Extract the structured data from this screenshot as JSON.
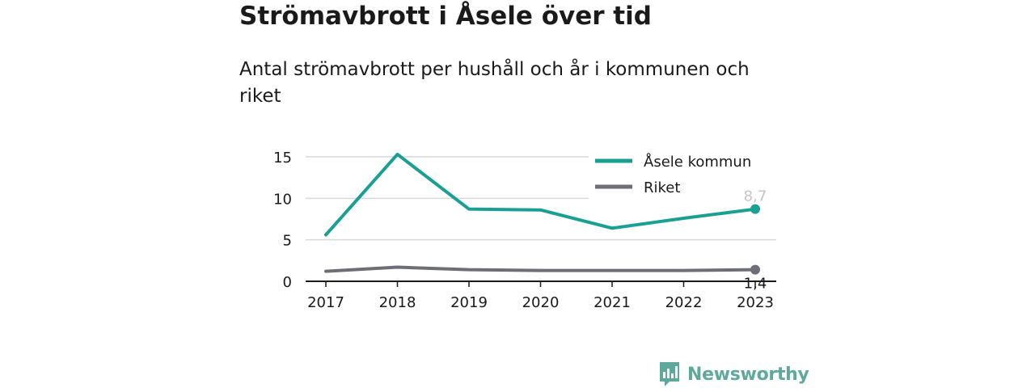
{
  "title": "Strömavbrott i Åsele över tid",
  "subtitle": "Antal strömavbrott per hushåll och år i kommunen och riket",
  "brand": {
    "name": "Newsworthy",
    "logo_icon": "bar-chart-speech-bubble-icon"
  },
  "colors": {
    "asele": "#1aa093",
    "riket": "#6e6e78",
    "brand": "#5fa89c",
    "grid": "#d9d9d9"
  },
  "chart_data": {
    "type": "line",
    "title": "Strömavbrott i Åsele över tid",
    "subtitle": "Antal strömavbrott per hushåll och år i kommunen och riket",
    "xlabel": "",
    "ylabel": "",
    "x": [
      "2017",
      "2018",
      "2019",
      "2020",
      "2021",
      "2022",
      "2023"
    ],
    "ylim": [
      0,
      15
    ],
    "yticks": [
      "0",
      "5",
      "10",
      "15"
    ],
    "grid": true,
    "legend_position": "top-right",
    "series": [
      {
        "name": "Åsele kommun",
        "values": [
          5.6,
          15.3,
          8.7,
          8.6,
          6.4,
          7.6,
          8.7
        ],
        "end_label": "8,7"
      },
      {
        "name": "Riket",
        "values": [
          1.2,
          1.7,
          1.4,
          1.3,
          1.3,
          1.3,
          1.4
        ],
        "end_label": "1,4"
      }
    ]
  }
}
